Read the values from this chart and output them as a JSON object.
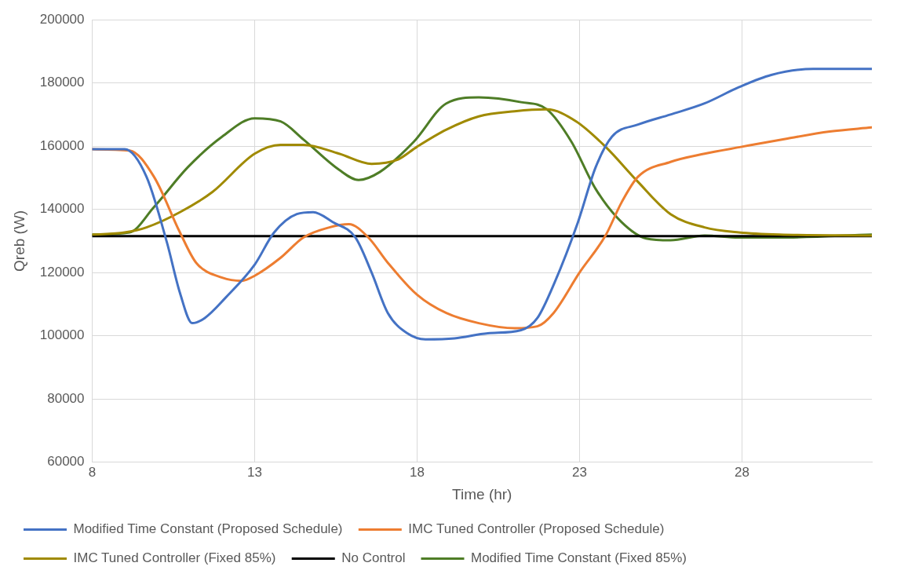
{
  "chart_data": {
    "type": "line",
    "xlabel": "Time (hr)",
    "ylabel": "Qreb (W)",
    "xlim": [
      8,
      32
    ],
    "xticks": [
      8,
      13,
      18,
      23,
      28
    ],
    "ylim": [
      60000,
      200000
    ],
    "yticks": [
      60000,
      80000,
      100000,
      120000,
      140000,
      160000,
      180000,
      200000
    ],
    "grid": true,
    "legend": "bottom",
    "marker": "none",
    "line_style": "solid",
    "series": [
      {
        "name": "Modified Time Constant (Proposed Schedule)",
        "color": "#4472c4",
        "x": [
          8,
          9,
          9.67,
          10.3,
          10.7,
          11.08,
          11.46,
          12.1,
          13,
          13.6,
          14.3,
          14.8,
          15.4,
          16.1,
          16.6,
          17.1,
          17.7,
          18.26,
          19.15,
          20.18,
          21.2,
          21.7,
          22.23,
          22.95,
          23.5,
          24,
          24.8,
          25.8,
          26.85,
          27.9,
          28.9,
          30.2,
          32
        ],
        "values": [
          159000,
          159000,
          150300,
          129500,
          113600,
          104000,
          105600,
          112000,
          122500,
          132700,
          138500,
          139100,
          136000,
          131100,
          120000,
          107200,
          100800,
          98900,
          99200,
          100800,
          101800,
          105600,
          116800,
          135900,
          153400,
          163000,
          166800,
          170000,
          173500,
          178600,
          182500,
          184400,
          184400
        ]
      },
      {
        "name": "IMC Tuned Controller (Proposed Schedule)",
        "color": "#ed7d31",
        "x": [
          8,
          9.15,
          9.9,
          10.7,
          11.2,
          12,
          12.6,
          13,
          13.8,
          14.5,
          15.3,
          15.9,
          16.5,
          17.1,
          18,
          18.9,
          19.9,
          21,
          21.7,
          22.2,
          23,
          23.8,
          24.3,
          24.8,
          25.8,
          26.85,
          28,
          29.4,
          30.7,
          32
        ],
        "values": [
          159000,
          158600,
          150300,
          132700,
          123100,
          118400,
          117400,
          119000,
          124700,
          131100,
          134300,
          135300,
          131100,
          123100,
          113000,
          107200,
          104000,
          102400,
          103000,
          107200,
          120000,
          131700,
          142300,
          150300,
          155000,
          157600,
          159800,
          162400,
          164600,
          165900
        ]
      },
      {
        "name": "IMC Tuned Controller (Fixed 85%)",
        "color": "#a08a00",
        "x": [
          8,
          9,
          9.67,
          10.7,
          11.7,
          13,
          13.8,
          14.5,
          15.6,
          16.6,
          17.4,
          18,
          18.9,
          19.9,
          21,
          22,
          22.9,
          23.8,
          24.8,
          25.8,
          26.85,
          27.9,
          29.15,
          32
        ],
        "values": [
          132000,
          132700,
          134300,
          139100,
          145500,
          157600,
          160400,
          160400,
          157600,
          154400,
          155700,
          159800,
          165200,
          169400,
          171000,
          171600,
          167800,
          159800,
          148700,
          138500,
          134300,
          132700,
          132000,
          131700
        ]
      },
      {
        "name": "No Control",
        "color": "#000000",
        "x": [
          8,
          32
        ],
        "values": [
          131500,
          131500
        ]
      },
      {
        "name": "Modified Time Constant (Fixed 85%)",
        "color": "#4e7d26",
        "x": [
          8,
          9.15,
          9.9,
          10.95,
          12,
          13,
          13.8,
          14.5,
          15.6,
          16.2,
          16.85,
          17.9,
          18.9,
          19.9,
          21.2,
          22,
          22.75,
          23.5,
          24.3,
          25.05,
          25.8,
          26.85,
          27.9,
          29.15,
          32
        ],
        "values": [
          132000,
          132700,
          140700,
          153400,
          163000,
          168800,
          167800,
          162100,
          152500,
          149300,
          151800,
          161400,
          173500,
          175400,
          173900,
          171600,
          161400,
          146400,
          135900,
          130800,
          130200,
          131700,
          131100,
          131100,
          132000
        ]
      }
    ]
  }
}
